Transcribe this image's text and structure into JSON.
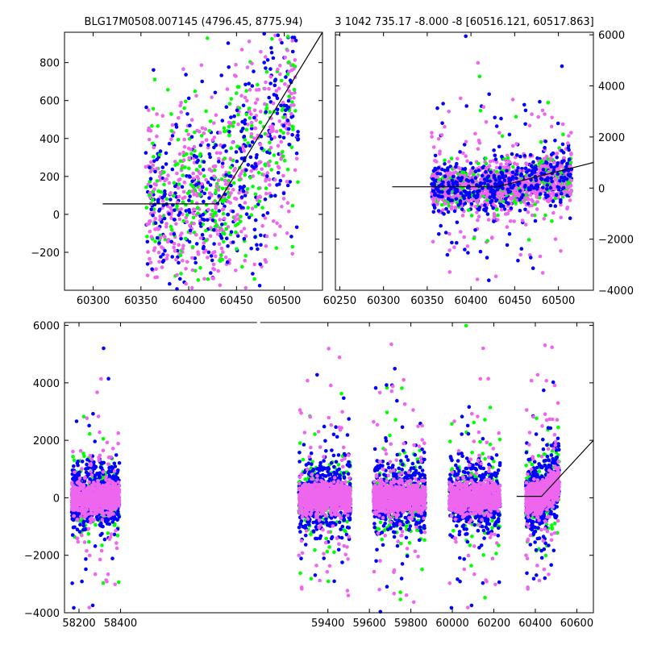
{
  "chart_data": [
    {
      "type": "scatter",
      "title": "BLG17M0508.007145 (4796.45, 8775.94)",
      "xlim": [
        60270,
        60540
      ],
      "ylim": [
        -400,
        960
      ],
      "xticks": [
        60300,
        60350,
        60400,
        60450,
        60500
      ],
      "yticks": [
        -200,
        0,
        200,
        400,
        600,
        800
      ],
      "ytick_side": "left",
      "grid": false,
      "series": [
        {
          "color": "#0000ff",
          "x_range": [
            60355,
            60515
          ],
          "y_range": [
            -380,
            940
          ],
          "count": 380,
          "trend": true
        },
        {
          "color": "#00ff00",
          "x_range": [
            60355,
            60515
          ],
          "y_range": [
            -380,
            940
          ],
          "count": 300,
          "trend": true
        },
        {
          "color": "#ee66ee",
          "x_range": [
            60355,
            60515
          ],
          "y_range": [
            -380,
            940
          ],
          "count": 520,
          "trend": true
        }
      ],
      "model_line": {
        "color": "#000000",
        "points": [
          [
            60310,
            55
          ],
          [
            60430,
            55
          ],
          [
            60540,
            960
          ]
        ]
      }
    },
    {
      "type": "scatter",
      "title": "3 1042 735.17 -8.000 -8 [60516.121, 60517.863]",
      "xlim": [
        60245,
        60540
      ],
      "ylim": [
        -4000,
        6100
      ],
      "xticks": [
        60250,
        60300,
        60350,
        60400,
        60450,
        60500
      ],
      "yticks": [
        -4000,
        -2000,
        0,
        2000,
        4000,
        6000
      ],
      "ytick_side": "right",
      "grid": false,
      "series": [
        {
          "color": "#0000ff",
          "x_range": [
            60355,
            60515
          ],
          "y_range": [
            -4000,
            6000
          ],
          "count": 650,
          "trend": true
        },
        {
          "color": "#00ff00",
          "x_range": [
            60355,
            60515
          ],
          "y_range": [
            -4000,
            6000
          ],
          "count": 250,
          "trend": true
        },
        {
          "color": "#ee66ee",
          "x_range": [
            60355,
            60515
          ],
          "y_range": [
            -4000,
            6000
          ],
          "count": 850,
          "trend": true
        }
      ],
      "model_line": {
        "color": "#000000",
        "points": [
          [
            60310,
            50
          ],
          [
            60430,
            50
          ],
          [
            60540,
            1000
          ]
        ]
      }
    },
    {
      "type": "scatter",
      "title": "",
      "xlim": [
        58130,
        60680
      ],
      "ylim": [
        -4000,
        6100
      ],
      "xticks": [
        58200,
        58400,
        59400,
        59600,
        59800,
        60000,
        60200,
        60400,
        60600
      ],
      "yticks": [
        -4000,
        -2000,
        0,
        2000,
        4000,
        6000
      ],
      "ytick_side": "left",
      "axis_break": {
        "from": 58450,
        "to": 59230
      },
      "grid": false,
      "seasons": [
        {
          "x_range": [
            58165,
            58395
          ],
          "center": 58280
        },
        {
          "x_range": [
            59260,
            59510
          ],
          "center": 59385
        },
        {
          "x_range": [
            59620,
            59870
          ],
          "center": 59745
        },
        {
          "x_range": [
            59985,
            60230
          ],
          "center": 60105
        },
        {
          "x_range": [
            60355,
            60515
          ],
          "center": 60435,
          "trend": true
        }
      ],
      "series": [
        {
          "color": "#0000ff",
          "points_per_season": 500
        },
        {
          "color": "#00ff00",
          "points_per_season": 220
        },
        {
          "color": "#ee66ee",
          "points_per_season": 900
        }
      ],
      "model_line": {
        "color": "#000000",
        "points": [
          [
            60310,
            50
          ],
          [
            60430,
            50
          ],
          [
            60680,
            2000
          ]
        ]
      }
    }
  ]
}
